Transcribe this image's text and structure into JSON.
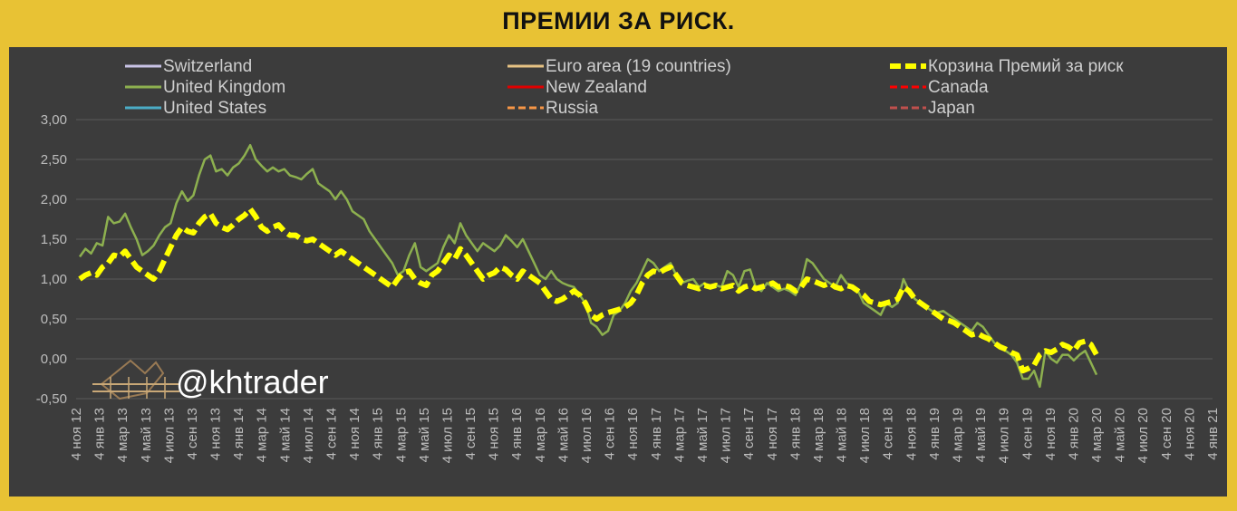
{
  "title": "ПРЕМИИ ЗА РИСК.",
  "watermark": "@khtrader",
  "colors": {
    "background": "#e8c234",
    "plot_background": "#3c3c3c",
    "grid": "#5a5a5a",
    "text": "#bdbdbd"
  },
  "chart_data": {
    "type": "line",
    "title": "ПРЕМИИ ЗА РИСК.",
    "xlabel": "",
    "ylabel": "",
    "ylim": [
      -0.5,
      3.0
    ],
    "y_ticks": [
      "-0,50",
      "0,00",
      "0,50",
      "1,00",
      "1,50",
      "2,00",
      "2,50",
      "3,00"
    ],
    "y_tick_values": [
      -0.5,
      0,
      0.5,
      1.0,
      1.5,
      2.0,
      2.5,
      3.0
    ],
    "grid": "horizontal",
    "legend_position": "top",
    "x_ticks": [
      "4 ноя 12",
      "4 янв 13",
      "4 мар 13",
      "4 май 13",
      "4 июл 13",
      "4 сен 13",
      "4 ноя 13",
      "4 янв 14",
      "4 мар 14",
      "4 май 14",
      "4 июл 14",
      "4 сен 14",
      "4 ноя 14",
      "4 янв 15",
      "4 мар 15",
      "4 май 15",
      "4 июл 15",
      "4 сен 15",
      "4 ноя 15",
      "4 янв 16",
      "4 мар 16",
      "4 май 16",
      "4 июл 16",
      "4 сен 16",
      "4 ноя 16",
      "4 янв 17",
      "4 мар 17",
      "4 май 17",
      "4 июл 17",
      "4 сен 17",
      "4 ноя 17",
      "4 янв 18",
      "4 мар 18",
      "4 май 18",
      "4 июл 18",
      "4 сен 18",
      "4 ноя 18",
      "4 янв 19",
      "4 мар 19",
      "4 май 19",
      "4 июл 19",
      "4 сен 19",
      "4 ноя 19",
      "4 янв 20",
      "4 мар 20",
      "4 май 20",
      "4 июл 20",
      "4 сен 20",
      "4 ноя 20",
      "4 янв 21"
    ],
    "series": [
      {
        "name": "Switzerland",
        "color": "#c9c3e6",
        "dash": false,
        "values": []
      },
      {
        "name": "United Kingdom",
        "color": "#8db04f",
        "dash": false,
        "values": [
          1.28,
          1.38,
          1.32,
          1.45,
          1.42,
          1.78,
          1.7,
          1.72,
          1.82,
          1.65,
          1.5,
          1.3,
          1.35,
          1.42,
          1.55,
          1.65,
          1.7,
          1.95,
          2.1,
          1.98,
          2.05,
          2.3,
          2.5,
          2.55,
          2.35,
          2.38,
          2.3,
          2.4,
          2.45,
          2.55,
          2.68,
          2.5,
          2.42,
          2.35,
          2.4,
          2.35,
          2.38,
          2.3,
          2.28,
          2.25,
          2.32,
          2.38,
          2.2,
          2.15,
          2.1,
          2.0,
          2.1,
          2.0,
          1.85,
          1.8,
          1.75,
          1.6,
          1.5,
          1.4,
          1.3,
          1.2,
          1.05,
          1.1,
          1.3,
          1.45,
          1.15,
          1.1,
          1.15,
          1.2,
          1.4,
          1.55,
          1.45,
          1.7,
          1.55,
          1.45,
          1.35,
          1.45,
          1.4,
          1.35,
          1.42,
          1.55,
          1.48,
          1.4,
          1.5,
          1.35,
          1.2,
          1.05,
          1.0,
          1.1,
          1.0,
          0.95,
          0.92,
          0.9,
          0.8,
          0.7,
          0.45,
          0.4,
          0.3,
          0.35,
          0.55,
          0.6,
          0.7,
          0.85,
          0.95,
          1.1,
          1.25,
          1.2,
          1.1,
          1.15,
          1.2,
          1.05,
          0.95,
          0.98,
          1.0,
          0.9,
          0.95,
          0.88,
          0.92,
          0.9,
          1.1,
          1.05,
          0.9,
          1.1,
          1.12,
          0.9,
          0.85,
          0.95,
          0.9,
          0.85,
          0.88,
          0.85,
          0.8,
          0.95,
          1.25,
          1.2,
          1.1,
          1.0,
          0.95,
          0.9,
          1.05,
          0.95,
          0.9,
          0.85,
          0.7,
          0.65,
          0.6,
          0.55,
          0.7,
          0.65,
          0.7,
          1.0,
          0.85,
          0.75,
          0.7,
          0.65,
          0.6,
          0.58,
          0.6,
          0.55,
          0.5,
          0.45,
          0.4,
          0.35,
          0.45,
          0.4,
          0.3,
          0.2,
          0.15,
          0.1,
          0.05,
          -0.05,
          -0.25,
          -0.25,
          -0.15,
          -0.35,
          0.1,
          0.0,
          -0.05,
          0.05,
          0.05,
          -0.02,
          0.05,
          0.1,
          -0.05,
          -0.2
        ]
      },
      {
        "name": "United States",
        "color": "#4bacc6",
        "dash": false,
        "values": []
      },
      {
        "name": "Euro area (19 countries)",
        "color": "#e6c283",
        "dash": false,
        "values": []
      },
      {
        "name": "New Zealand",
        "color": "#e00000",
        "dash": false,
        "values": []
      },
      {
        "name": "Russia",
        "color": "#f79646",
        "dash": true,
        "values": []
      },
      {
        "name": "Корзина Премий за риск",
        "color": "#ffff00",
        "dash": true,
        "values": [
          1.0,
          1.05,
          1.08,
          1.05,
          1.15,
          1.2,
          1.3,
          1.28,
          1.35,
          1.25,
          1.15,
          1.1,
          1.05,
          1.0,
          1.1,
          1.25,
          1.4,
          1.55,
          1.65,
          1.6,
          1.58,
          1.7,
          1.78,
          1.82,
          1.7,
          1.65,
          1.62,
          1.68,
          1.75,
          1.8,
          1.88,
          1.78,
          1.65,
          1.6,
          1.65,
          1.68,
          1.6,
          1.55,
          1.55,
          1.5,
          1.48,
          1.5,
          1.45,
          1.4,
          1.35,
          1.3,
          1.35,
          1.3,
          1.25,
          1.2,
          1.15,
          1.1,
          1.05,
          1.0,
          0.95,
          0.9,
          1.0,
          1.08,
          1.1,
          1.0,
          0.95,
          0.92,
          1.05,
          1.1,
          1.2,
          1.3,
          1.25,
          1.38,
          1.3,
          1.2,
          1.1,
          1.0,
          1.05,
          1.08,
          1.15,
          1.12,
          1.05,
          1.0,
          1.1,
          1.05,
          1.0,
          0.95,
          0.85,
          0.75,
          0.72,
          0.75,
          0.8,
          0.85,
          0.8,
          0.7,
          0.55,
          0.5,
          0.55,
          0.58,
          0.6,
          0.62,
          0.65,
          0.7,
          0.8,
          0.95,
          1.05,
          1.1,
          1.08,
          1.12,
          1.15,
          1.05,
          0.95,
          0.92,
          0.9,
          0.88,
          0.92,
          0.9,
          0.92,
          0.88,
          0.9,
          0.92,
          0.85,
          0.9,
          0.92,
          0.88,
          0.9,
          0.92,
          0.95,
          0.9,
          0.92,
          0.9,
          0.85,
          0.9,
          1.0,
          0.98,
          0.95,
          0.92,
          0.95,
          0.9,
          0.88,
          0.92,
          0.9,
          0.85,
          0.8,
          0.72,
          0.7,
          0.68,
          0.7,
          0.72,
          0.75,
          0.9,
          0.85,
          0.75,
          0.7,
          0.65,
          0.6,
          0.55,
          0.5,
          0.48,
          0.45,
          0.4,
          0.35,
          0.3,
          0.32,
          0.28,
          0.25,
          0.2,
          0.15,
          0.12,
          0.08,
          0.05,
          -0.15,
          -0.12,
          -0.08,
          0.05,
          0.1,
          0.08,
          0.12,
          0.18,
          0.15,
          0.1,
          0.2,
          0.22,
          0.18,
          0.05
        ]
      },
      {
        "name": "Canada",
        "color": "#ff0000",
        "dash": true,
        "values": []
      },
      {
        "name": "Japan",
        "color": "#c0504d",
        "dash": true,
        "values": []
      }
    ]
  }
}
